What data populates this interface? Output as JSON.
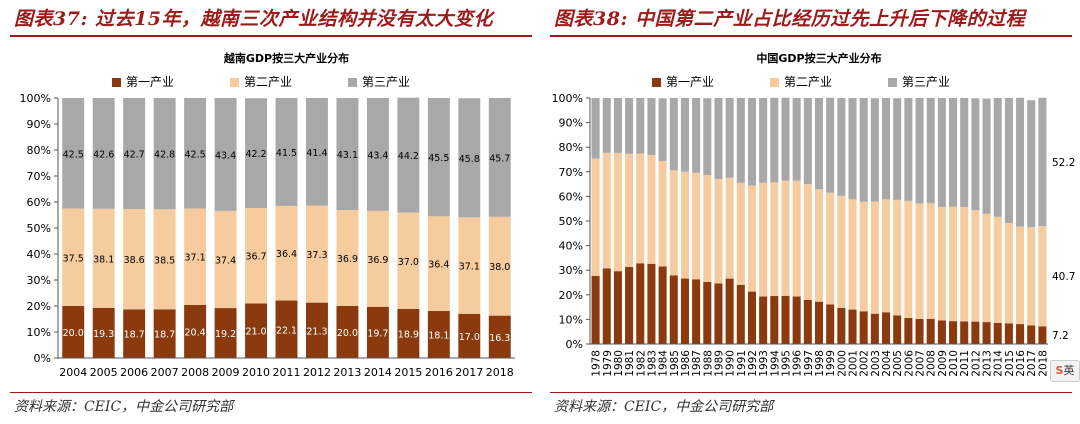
{
  "colors": {
    "primary": "#8b3a0e",
    "secondary": "#f6cc9e",
    "tertiary": "#a8a8a8",
    "accent": "#9c1b1b"
  },
  "left": {
    "figure_title": "图表37: 过去15年，越南三次产业结构并没有太大变化",
    "source": "资料来源：CEIC，中金公司研究部"
  },
  "right": {
    "figure_title": "图表38: 中国第二产业占比经历过先上升后下降的过程",
    "source": "资料来源：CEIC，中金公司研究部"
  },
  "ime_widget": {
    "label": "英"
  },
  "chart_data": [
    {
      "type": "bar",
      "stacked": true,
      "title": "越南GDP按三大产业分布",
      "categories": [
        "2004",
        "2005",
        "2006",
        "2007",
        "2008",
        "2009",
        "2010",
        "2011",
        "2012",
        "2013",
        "2014",
        "2015",
        "2016",
        "2017",
        "2018"
      ],
      "series": [
        {
          "name": "第一产业",
          "color": "#8b3a0e",
          "values": [
            20.0,
            19.3,
            18.7,
            18.7,
            20.4,
            19.2,
            21.0,
            22.1,
            21.3,
            20.0,
            19.7,
            18.9,
            18.1,
            17.0,
            16.3
          ]
        },
        {
          "name": "第二产业",
          "color": "#f6cc9e",
          "values": [
            37.5,
            38.1,
            38.6,
            38.5,
            37.1,
            37.4,
            36.7,
            36.4,
            37.3,
            36.9,
            36.9,
            37.0,
            36.4,
            37.1,
            38.0
          ]
        },
        {
          "name": "第三产业",
          "color": "#a8a8a8",
          "values": [
            42.5,
            42.6,
            42.7,
            42.8,
            42.5,
            43.4,
            42.2,
            41.5,
            41.4,
            43.1,
            43.4,
            44.2,
            45.5,
            45.8,
            45.7
          ]
        }
      ],
      "ylim": [
        0,
        100
      ],
      "yticks": [
        "0%",
        "10%",
        "20%",
        "30%",
        "40%",
        "50%",
        "60%",
        "70%",
        "80%",
        "90%",
        "100%"
      ],
      "data_labels": true
    },
    {
      "type": "bar",
      "stacked": true,
      "title": "中国GDP按三大产业分布",
      "categories": [
        "1978",
        "1979",
        "1980",
        "1981",
        "1982",
        "1983",
        "1984",
        "1985",
        "1986",
        "1987",
        "1988",
        "1989",
        "1990",
        "1991",
        "1992",
        "1993",
        "1994",
        "1995",
        "1996",
        "1997",
        "1998",
        "1999",
        "2000",
        "2001",
        "2002",
        "2003",
        "2004",
        "2005",
        "2006",
        "2007",
        "2008",
        "2009",
        "2010",
        "2011",
        "2012",
        "2013",
        "2014",
        "2015",
        "2016",
        "2017",
        "2018"
      ],
      "series": [
        {
          "name": "第一产业",
          "color": "#8b3a0e",
          "values": [
            27.7,
            30.7,
            29.6,
            31.3,
            32.8,
            32.6,
            31.5,
            27.9,
            26.6,
            26.3,
            25.2,
            24.6,
            26.6,
            24.0,
            21.3,
            19.3,
            19.5,
            19.6,
            19.3,
            17.9,
            17.2,
            16.1,
            14.7,
            14.0,
            13.3,
            12.3,
            12.9,
            11.6,
            10.6,
            10.2,
            10.2,
            9.6,
            9.3,
            9.2,
            9.1,
            8.9,
            8.6,
            8.4,
            8.1,
            7.6,
            7.2
          ]
        },
        {
          "name": "第二产业",
          "color": "#f6cc9e",
          "values": [
            47.7,
            47.0,
            48.1,
            46.0,
            44.6,
            44.2,
            42.9,
            42.7,
            43.5,
            43.3,
            43.5,
            42.5,
            41.0,
            41.5,
            43.1,
            46.2,
            46.2,
            46.8,
            47.1,
            47.1,
            45.8,
            45.4,
            45.5,
            44.8,
            44.5,
            45.6,
            45.9,
            47.0,
            47.6,
            46.9,
            47.0,
            46.0,
            46.5,
            46.5,
            45.3,
            44.0,
            43.1,
            40.8,
            39.6,
            39.9,
            40.7
          ]
        },
        {
          "name": "第三产业",
          "color": "#a8a8a8",
          "values": [
            24.6,
            22.3,
            22.3,
            22.7,
            22.6,
            23.2,
            25.5,
            29.4,
            29.9,
            30.4,
            31.2,
            32.9,
            32.4,
            34.5,
            35.6,
            34.5,
            34.4,
            33.7,
            33.6,
            35.0,
            37.0,
            38.6,
            39.8,
            41.2,
            42.2,
            42.0,
            41.2,
            41.3,
            41.8,
            42.9,
            42.8,
            44.4,
            44.2,
            44.3,
            45.5,
            46.9,
            48.3,
            50.8,
            52.4,
            51.6,
            52.2
          ]
        }
      ],
      "ylim": [
        0,
        100
      ],
      "yticks": [
        "0%",
        "10%",
        "20%",
        "30%",
        "40%",
        "50%",
        "60%",
        "70%",
        "80%",
        "90%",
        "100%"
      ],
      "end_labels": [
        "7.2",
        "40.7",
        "52.2"
      ]
    }
  ]
}
